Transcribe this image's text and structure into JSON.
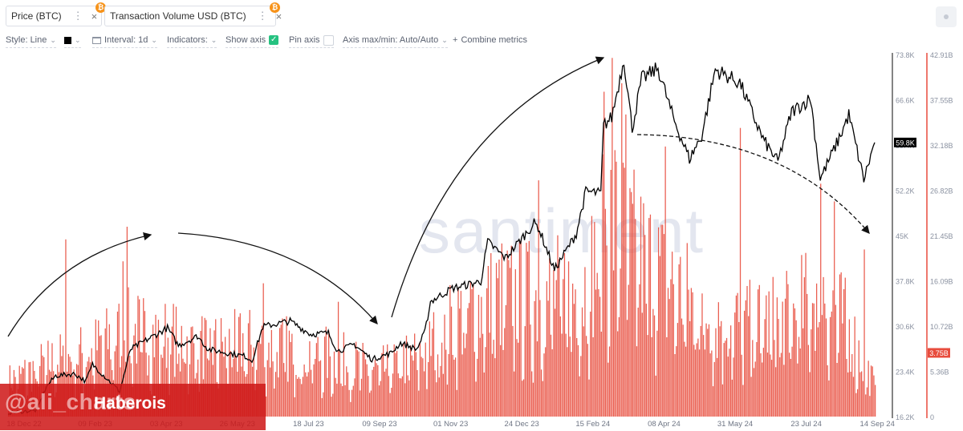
{
  "tabs": [
    {
      "label": "Price (BTC)",
      "color": "#1b1b1b",
      "badge": "₿",
      "menu_icon": "dots-vertical-icon",
      "close_icon": "close-icon"
    },
    {
      "label": "Transaction Volume USD (BTC)",
      "color": "#e84c3d",
      "badge": "₿",
      "menu_icon": "dots-vertical-icon",
      "close_icon": "close-icon"
    }
  ],
  "toolbar": {
    "style": "Style: Line",
    "interval": "Interval: 1d",
    "indicators": "Indicators:",
    "show_axis": "Show axis",
    "pin_axis": "Pin axis",
    "axis_maxmin": "Axis max/min: Auto/Auto",
    "combine": "Combine metrics",
    "plus": "+",
    "check": "✓"
  },
  "watermark": {
    "brand": "santiment",
    "handle": "@ali_charts",
    "source": "Haberois"
  },
  "chart_data": {
    "type": "line+bar",
    "x_ticks": [
      "18 Dec 22",
      "09 Feb 23",
      "03 Apr 23",
      "26 May 23",
      "18 Jul 23",
      "09 Sep 23",
      "01 Nov 23",
      "24 Dec 23",
      "15 Feb 24",
      "08 Apr 24",
      "31 May 24",
      "23 Jul 24",
      "14 Sep 24"
    ],
    "x_range": [
      "2022-12-18",
      "2024-09-14"
    ],
    "price_axis": {
      "ticks": [
        "73.8K",
        "66.6K",
        "59.4K",
        "52.2K",
        "45K",
        "37.8K",
        "30.6K",
        "23.4K",
        "16.2K"
      ],
      "min": 16200,
      "max": 73800,
      "current_label": "59.8K",
      "current_value": 59800
    },
    "volume_axis": {
      "ticks": [
        "42.91B",
        "37.55B",
        "32.18B",
        "26.82B",
        "21.45B",
        "16.09B",
        "10.72B",
        "5.36B",
        "0"
      ],
      "min": 0,
      "max": 42.91,
      "current_label": "3.75B",
      "current_value": 3.75
    },
    "series": [
      {
        "name": "Price (BTC)",
        "color": "#000000",
        "axis": "left",
        "points": [
          [
            "2022-12-18",
            16800
          ],
          [
            "2023-01-08",
            17200
          ],
          [
            "2023-01-15",
            20900
          ],
          [
            "2023-01-22",
            22700
          ],
          [
            "2023-02-05",
            23000
          ],
          [
            "2023-02-13",
            21800
          ],
          [
            "2023-02-18",
            24500
          ],
          [
            "2023-03-10",
            20200
          ],
          [
            "2023-03-18",
            26900
          ],
          [
            "2023-03-29",
            28300
          ],
          [
            "2023-04-14",
            30300
          ],
          [
            "2023-04-22",
            27500
          ],
          [
            "2023-05-06",
            29000
          ],
          [
            "2023-05-14",
            26900
          ],
          [
            "2023-06-10",
            25800
          ],
          [
            "2023-06-15",
            25100
          ],
          [
            "2023-06-23",
            30500
          ],
          [
            "2023-07-13",
            31400
          ],
          [
            "2023-07-28",
            29300
          ],
          [
            "2023-08-10",
            29500
          ],
          [
            "2023-08-17",
            26600
          ],
          [
            "2023-08-29",
            27700
          ],
          [
            "2023-09-11",
            25300
          ],
          [
            "2023-09-25",
            26300
          ],
          [
            "2023-10-02",
            27900
          ],
          [
            "2023-10-14",
            26900
          ],
          [
            "2023-10-20",
            29700
          ],
          [
            "2023-10-24",
            34500
          ],
          [
            "2023-11-09",
            36600
          ],
          [
            "2023-11-30",
            37700
          ],
          [
            "2023-12-05",
            44000
          ],
          [
            "2023-12-18",
            41400
          ],
          [
            "2024-01-08",
            46900
          ],
          [
            "2024-01-11",
            46400
          ],
          [
            "2024-01-23",
            39500
          ],
          [
            "2024-02-08",
            45300
          ],
          [
            "2024-02-15",
            52000
          ],
          [
            "2024-02-26",
            51700
          ],
          [
            "2024-02-28",
            62500
          ],
          [
            "2024-03-05",
            63800
          ],
          [
            "2024-03-14",
            73100
          ],
          [
            "2024-03-20",
            62000
          ],
          [
            "2024-03-27",
            69900
          ],
          [
            "2024-04-08",
            71600
          ],
          [
            "2024-04-19",
            63800
          ],
          [
            "2024-05-01",
            57200
          ],
          [
            "2024-05-10",
            60800
          ],
          [
            "2024-05-20",
            71400
          ],
          [
            "2024-06-07",
            69300
          ],
          [
            "2024-06-24",
            60300
          ],
          [
            "2024-07-05",
            56700
          ],
          [
            "2024-07-15",
            64700
          ],
          [
            "2024-07-29",
            66800
          ],
          [
            "2024-08-05",
            54000
          ],
          [
            "2024-08-20",
            61000
          ],
          [
            "2024-08-26",
            64200
          ],
          [
            "2024-09-06",
            53900
          ],
          [
            "2024-09-14",
            59800
          ]
        ]
      },
      {
        "name": "Transaction Volume USD (BTC)",
        "color": "#e84c3d",
        "axis": "right",
        "unit": "B",
        "points": [
          [
            "2022-12-18",
            4.5
          ],
          [
            "2023-01-15",
            6.8
          ],
          [
            "2023-02-14",
            8.2
          ],
          [
            "2023-03-15",
            11.0
          ],
          [
            "2023-04-15",
            10.2
          ],
          [
            "2023-05-15",
            8.9
          ],
          [
            "2023-06-15",
            9.4
          ],
          [
            "2023-07-15",
            8.6
          ],
          [
            "2023-08-15",
            7.5
          ],
          [
            "2023-09-15",
            5.8
          ],
          [
            "2023-10-15",
            7.9
          ],
          [
            "2023-11-15",
            12.8
          ],
          [
            "2023-12-15",
            15.5
          ],
          [
            "2024-01-15",
            15.2
          ],
          [
            "2024-02-15",
            16.8
          ],
          [
            "2024-03-05",
            25.5
          ],
          [
            "2024-03-20",
            21.5
          ],
          [
            "2024-04-15",
            17.2
          ],
          [
            "2024-05-15",
            13.2
          ],
          [
            "2024-06-15",
            11.8
          ],
          [
            "2024-07-15",
            12.6
          ],
          [
            "2024-08-05",
            16.5
          ],
          [
            "2024-08-25",
            11.4
          ],
          [
            "2024-09-14",
            3.75
          ]
        ]
      }
    ],
    "spikes": [
      [
        "2023-01-29",
        21.0
      ],
      [
        "2023-03-15",
        22.5
      ],
      [
        "2023-03-12",
        18.4
      ],
      [
        "2023-06-23",
        15.8
      ],
      [
        "2023-08-17",
        13.6
      ],
      [
        "2024-01-11",
        28.0
      ],
      [
        "2024-02-28",
        38.5
      ],
      [
        "2024-03-05",
        42.5
      ],
      [
        "2024-03-12",
        39.5
      ],
      [
        "2024-03-15",
        35.8
      ],
      [
        "2024-04-13",
        32.0
      ],
      [
        "2024-06-07",
        34.2
      ],
      [
        "2024-08-05",
        27.6
      ],
      [
        "2024-08-15",
        25.5
      ],
      [
        "2024-09-06",
        19.8
      ]
    ]
  }
}
